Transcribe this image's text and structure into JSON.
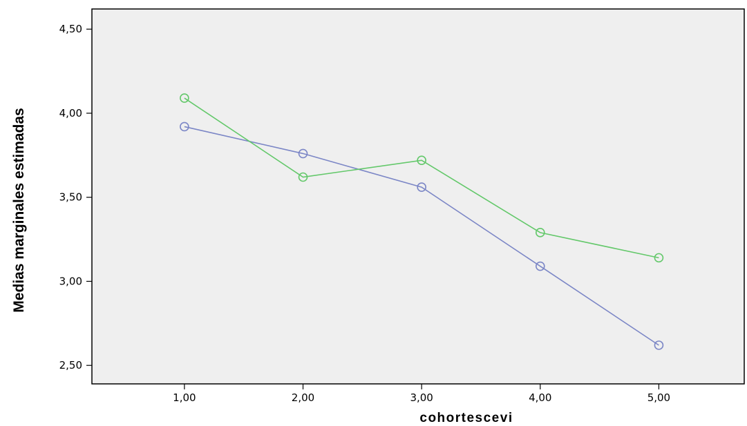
{
  "chart_data": {
    "type": "line",
    "x": [
      "1,00",
      "2,00",
      "3,00",
      "4,00",
      "5,00"
    ],
    "xvals": [
      1,
      2,
      3,
      4,
      5
    ],
    "xlim": [
      0.22,
      5.72
    ],
    "ylim": [
      2.39,
      4.62
    ],
    "yticks": [
      {
        "value": 2.5,
        "label": "2,50"
      },
      {
        "value": 3.0,
        "label": "3,00"
      },
      {
        "value": 3.5,
        "label": "3,50"
      },
      {
        "value": 4.0,
        "label": "4,00"
      },
      {
        "value": 4.5,
        "label": "4,50"
      }
    ],
    "xlabel": "cohortescevi",
    "ylabel": "Medias marginales estimadas",
    "title": "",
    "grid": false,
    "series": [
      {
        "color": "#7b86c6",
        "values": [
          3.92,
          3.76,
          3.56,
          3.09,
          2.62
        ]
      },
      {
        "color": "#63c86a",
        "values": [
          4.09,
          3.62,
          3.72,
          3.29,
          3.14
        ]
      }
    ],
    "plot_background": "#efefef",
    "marker": "open-circle"
  }
}
